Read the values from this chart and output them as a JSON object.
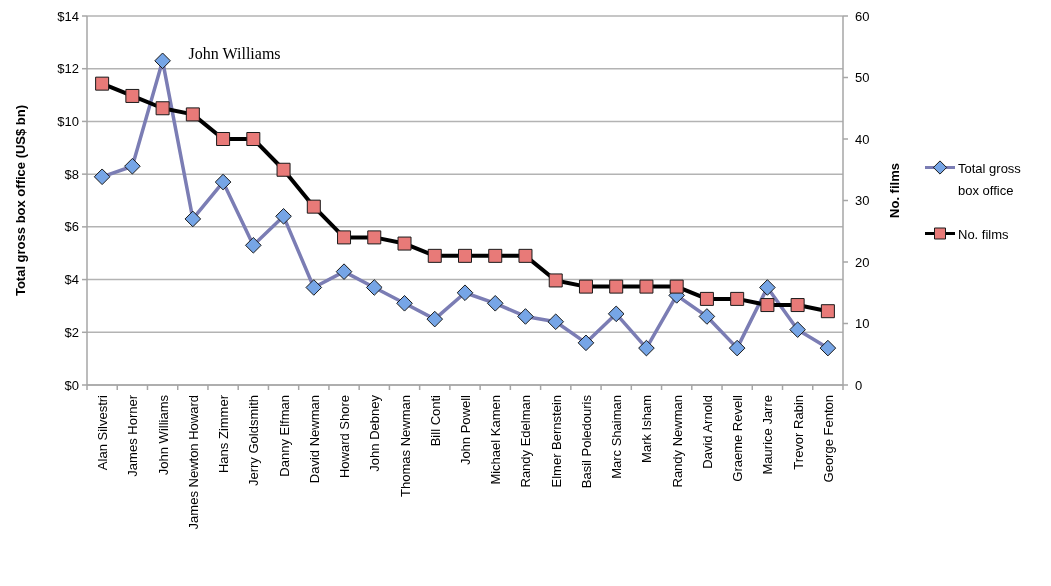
{
  "chart_data": {
    "type": "line",
    "categories": [
      "Alan Silvestri",
      "James Horner",
      "John Williams",
      "James Newton Howard",
      "Hans Zimmer",
      "Jerry Goldsmith",
      "Danny Elfman",
      "David Newman",
      "Howard Shore",
      "John Debney",
      "Thomas Newman",
      "Bill Conti",
      "John Powell",
      "Michael Kamen",
      "Randy Edelman",
      "Elmer Bernstein",
      "Basil Poledouris",
      "Marc Shaiman",
      "Mark Isham",
      "Randy Newman",
      "David Arnold",
      "Graeme Revell",
      "Maurice Jarre",
      "Trevor Rabin",
      "George Fenton"
    ],
    "series": [
      {
        "name": "Total gross box office",
        "color": "#7b7db4",
        "colors": [
          "#76a5e6",
          "#76a5e6",
          "#76a5e6",
          "#76a5e6",
          "#76a5e6",
          "#76a5e6",
          "#76a5e6",
          "#76a5e6",
          "#76a5e6",
          "#76a5e6",
          "#76a5e6",
          "#76a5e6",
          "#76a5e6",
          "#76a5e6",
          "#76a5e6",
          "#76a5e6",
          "#76a5e6",
          "#76a5e6",
          "#76a5e6",
          "#76a5e6",
          "#76a5e6",
          "#76a5e6",
          "#76a5e6",
          "#76a5e6",
          "#76a5e6"
        ],
        "marker": "diamond",
        "values": [
          7.9,
          8.3,
          12.3,
          6.3,
          7.7,
          5.3,
          6.4,
          3.7,
          4.3,
          3.7,
          3.1,
          2.5,
          3.5,
          3.1,
          2.6,
          2.4,
          1.6,
          2.7,
          1.4,
          3.4,
          2.6,
          1.4,
          3.7,
          2.1,
          1.4
        ]
      },
      {
        "name": "No. films",
        "color": "#000000",
        "colors": [
          "#e87a78",
          "#e87a78",
          "#e87a78",
          "#e87a78",
          "#e87a78",
          "#e87a78",
          "#e87a78",
          "#e87a78",
          "#e87a78",
          "#e87a78",
          "#e87a78",
          "#e87a78",
          "#e87a78",
          "#e87a78",
          "#e87a78",
          "#e87a78",
          "#e87a78",
          "#e87a78",
          "#e87a78",
          "#e87a78",
          "#e87a78",
          "#e87a78",
          "#e87a78",
          "#e87a78",
          "#e87a78"
        ],
        "marker": "square",
        "axis": "y2",
        "values": [
          49,
          47,
          45,
          44,
          40,
          40,
          35,
          29,
          24,
          24,
          23,
          21,
          21,
          21,
          21,
          17,
          16,
          16,
          16,
          16,
          14,
          14,
          13,
          13,
          12
        ]
      }
    ],
    "ylabel": "Total gross box office (US$ bn)",
    "y2label": "No. films",
    "ylim": [
      0,
      14
    ],
    "yticks": [
      {
        "value": 0,
        "label": "$0"
      },
      {
        "value": 2,
        "label": "$2"
      },
      {
        "value": 4,
        "label": "$4"
      },
      {
        "value": 6,
        "label": "$6"
      },
      {
        "value": 8,
        "label": "$8"
      },
      {
        "value": 10,
        "label": "$10"
      },
      {
        "value": 12,
        "label": "$12"
      },
      {
        "value": 14,
        "label": "$14"
      }
    ],
    "y2lim": [
      0,
      60
    ],
    "y2ticks": [
      0,
      10,
      20,
      30,
      40,
      50,
      60
    ],
    "annotations": [
      {
        "text": "John Williams",
        "x": "John Williams",
        "y": 12.3
      }
    ],
    "grid": "y",
    "legend": "right",
    "line_style": "solid"
  }
}
